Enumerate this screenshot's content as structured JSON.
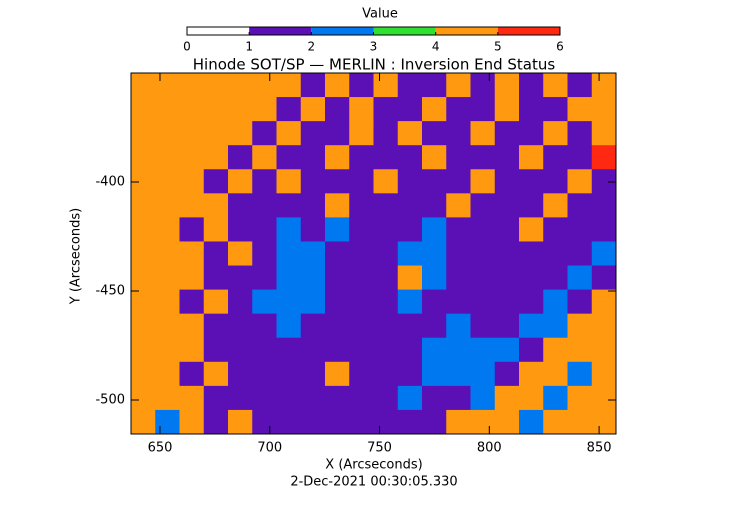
{
  "chart_data": {
    "type": "heatmap",
    "title": "Hinode SOT/SP — MERLIN : Inversion End Status",
    "colorbar_label": "Value",
    "colorbar_ticks": [
      0,
      1,
      2,
      3,
      4,
      5,
      6
    ],
    "colors": [
      "#ffffff",
      "#5a10b5",
      "#0078f0",
      "#30e030",
      "#ff9a10",
      "#ff2810"
    ],
    "zlim": [
      0,
      6
    ],
    "x_label": "X (Arcseconds)",
    "y_label": "Y (Arcseconds)",
    "date": "2-Dec-2021 00:30:05.330",
    "xlim": [
      636.8,
      857.7
    ],
    "ylim": [
      -515.6,
      -350
    ],
    "xticks": [
      650,
      700,
      750,
      800,
      850
    ],
    "yticks": [
      -400,
      -450,
      -500
    ],
    "z": [
      [
        4,
        4,
        4,
        4,
        4,
        4,
        4,
        1,
        4,
        1,
        4,
        1,
        1,
        4,
        1,
        4,
        1,
        4,
        1,
        4
      ],
      [
        4,
        4,
        4,
        4,
        4,
        4,
        1,
        4,
        1,
        4,
        1,
        1,
        4,
        1,
        1,
        4,
        1,
        1,
        4,
        4
      ],
      [
        4,
        4,
        4,
        4,
        4,
        1,
        4,
        1,
        1,
        4,
        1,
        4,
        1,
        1,
        4,
        1,
        1,
        4,
        1,
        4
      ],
      [
        4,
        4,
        4,
        4,
        1,
        4,
        1,
        1,
        4,
        1,
        1,
        1,
        4,
        1,
        1,
        1,
        4,
        1,
        1,
        5
      ],
      [
        4,
        4,
        4,
        1,
        4,
        1,
        4,
        1,
        1,
        1,
        4,
        1,
        1,
        1,
        4,
        1,
        1,
        1,
        4,
        1
      ],
      [
        4,
        4,
        4,
        4,
        1,
        1,
        1,
        1,
        4,
        1,
        1,
        1,
        1,
        4,
        1,
        1,
        1,
        4,
        1,
        1
      ],
      [
        4,
        4,
        1,
        4,
        1,
        1,
        2,
        1,
        2,
        1,
        1,
        1,
        2,
        1,
        1,
        1,
        4,
        1,
        1,
        1
      ],
      [
        4,
        4,
        4,
        1,
        4,
        1,
        2,
        2,
        1,
        1,
        1,
        2,
        2,
        1,
        1,
        1,
        1,
        1,
        1,
        2
      ],
      [
        4,
        4,
        4,
        1,
        1,
        1,
        2,
        2,
        1,
        1,
        1,
        4,
        2,
        1,
        1,
        1,
        1,
        1,
        2,
        1
      ],
      [
        4,
        4,
        1,
        4,
        1,
        2,
        2,
        2,
        1,
        1,
        1,
        2,
        1,
        1,
        1,
        1,
        1,
        2,
        1,
        4
      ],
      [
        4,
        4,
        4,
        1,
        1,
        1,
        2,
        1,
        1,
        1,
        1,
        1,
        1,
        2,
        1,
        1,
        2,
        2,
        4,
        4
      ],
      [
        4,
        4,
        4,
        1,
        1,
        1,
        1,
        1,
        1,
        1,
        1,
        1,
        2,
        2,
        2,
        2,
        1,
        4,
        4,
        4
      ],
      [
        4,
        4,
        1,
        4,
        1,
        1,
        1,
        1,
        4,
        1,
        1,
        1,
        2,
        2,
        2,
        1,
        4,
        4,
        2,
        4
      ],
      [
        4,
        4,
        4,
        1,
        1,
        1,
        1,
        1,
        1,
        1,
        1,
        2,
        1,
        1,
        2,
        4,
        4,
        2,
        4,
        4
      ],
      [
        4,
        2,
        4,
        1,
        4,
        1,
        1,
        1,
        1,
        1,
        1,
        1,
        1,
        4,
        4,
        4,
        2,
        4,
        4,
        4
      ]
    ]
  }
}
